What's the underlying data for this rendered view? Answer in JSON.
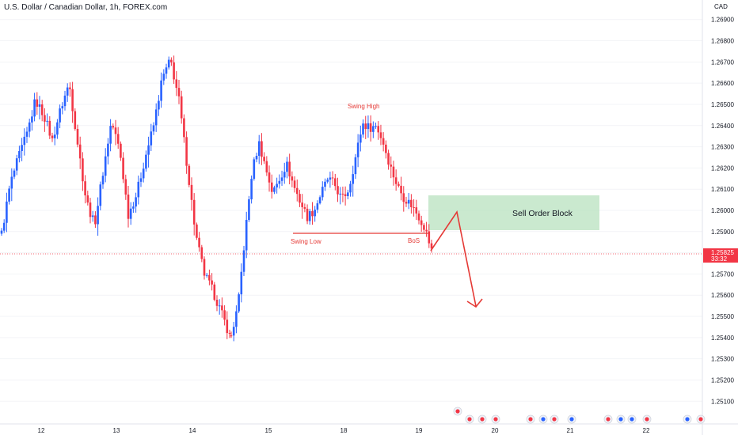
{
  "chart_data": {
    "type": "candlestick",
    "title": "U.S. Dollar / Canadian Dollar, 1h, FOREX.com",
    "currency": "CAD",
    "y_ticks": [
      "1.26900",
      "1.26800",
      "1.26700",
      "1.26600",
      "1.26500",
      "1.26400",
      "1.26300",
      "1.26200",
      "1.26100",
      "1.26000",
      "1.25900",
      "1.25800",
      "1.25700",
      "1.25600",
      "1.25500",
      "1.25400",
      "1.25300",
      "1.25200",
      "1.25100"
    ],
    "ylim": [
      1.2506,
      1.2694
    ],
    "x_ticks": [
      "12",
      "13",
      "14",
      "15",
      "18",
      "19",
      "20",
      "21",
      "22"
    ],
    "current_price": "1.25825",
    "countdown": "33:32",
    "colors": {
      "up": "#2962ff",
      "down": "#f23645",
      "order_block": "#b8e2bf",
      "annotation": "#e53935",
      "price_tag": "#f23645"
    },
    "segments": [
      {
        "y": [
          1.2589,
          1.2612,
          1.2625,
          1.2636,
          1.2652,
          1.2645,
          1.2633,
          1.2648,
          1.266,
          1.2632,
          1.2605,
          1.2593,
          1.2618,
          1.2642,
          1.2628,
          1.2598,
          1.2608,
          1.2625,
          1.264,
          1.2662,
          1.2671,
          1.2652,
          1.262,
          1.2588,
          1.257,
          1.2562,
          1.2552,
          1.2541
        ]
      },
      {
        "y": [
          1.2541,
          1.2555,
          1.2588,
          1.2618,
          1.2632,
          1.262,
          1.2608,
          1.2615,
          1.2622,
          1.2612,
          1.2604,
          1.2597,
          1.26,
          1.2608,
          1.2615,
          1.2612,
          1.2605,
          1.261,
          1.2625,
          1.2641,
          1.2639,
          1.264,
          1.2632,
          1.2621,
          1.2612,
          1.2606,
          1.2603,
          1.2598,
          1.2592,
          1.2581
        ]
      }
    ],
    "annotations": {
      "swing_high": "Swing High",
      "swing_low": "Swing Low",
      "bos": "BoS",
      "order_block": "Sell Order Block"
    }
  }
}
